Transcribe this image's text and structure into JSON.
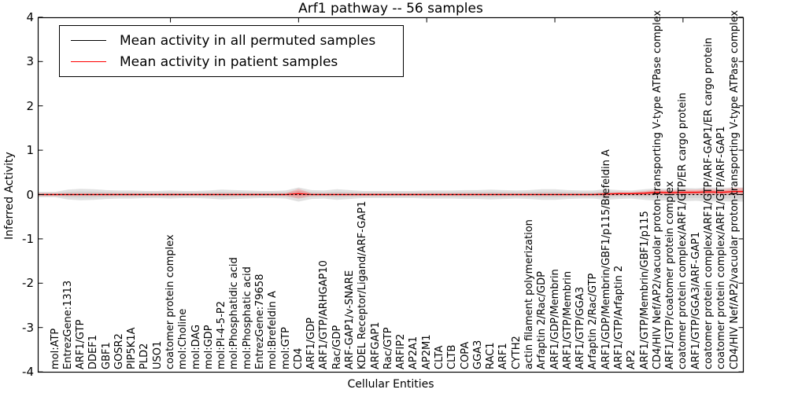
{
  "chart_data": {
    "type": "line",
    "title": "Arf1 pathway -- 56 samples",
    "xlabel": "Cellular Entities",
    "ylabel": "Inferred Activity",
    "ylim": [
      -4,
      4
    ],
    "yticks": [
      "4",
      "3",
      "2",
      "1",
      "0",
      "-1",
      "-2",
      "-3",
      "-4"
    ],
    "top_axis_tick_values": [
      10,
      20,
      30,
      40,
      50
    ],
    "legend_position": "upper left",
    "grid": false,
    "categories": [
      "mol:ATP",
      "EntrezGene:1313",
      "ARF1/GTP",
      "DDEF1",
      "GBF1",
      "GOSR2",
      "PIP5K1A",
      "PLD2",
      "USO1",
      "coatomer protein complex",
      "mol:Choline",
      "mol:DAG",
      "mol:GDP",
      "mol:PI-4-5-P2",
      "mol:Phosphatidic acid",
      "mol:Phosphatic acid",
      "EntrezGene:79658",
      "mol:Brefeldin A",
      "mol:GTP",
      "CD4",
      "ARF1/GDP",
      "ARF1/GTP/ARHGAP10",
      "Rac/GDP",
      "ARF-GAP1/v-SNARE",
      "KDEL Receptor/Ligand/ARF-GAP1",
      "ARFGAP1",
      "Rac/GTP",
      "ARFIP2",
      "AP2A1",
      "AP2M1",
      "CLTA",
      "CLTB",
      "COPA",
      "GGA3",
      "RAC1",
      "ARF1",
      "CYTH2",
      "actin filament polymerization",
      "Arfaptin 2/Rac/GDP",
      "ARF1/GDP/Membrin",
      "ARF1/GTP/Membrin",
      "ARF1/GTP/GGA3",
      "Arfaptin 2/Rac/GTP",
      "ARF1/GDP/Membrin/GBF1/p115/Brefeldin A",
      "ARF1/GTP/Arfaptin 2",
      "AP2",
      "ARF1/GTP/Membrin/GBF1/p115",
      "CD4/HIV Nef/AP2/vacuolar proton-transporting V-type ATPase complex",
      "ARF1/GTP/coatomer protein complex",
      "coatomer protein complex/ARF1/GTP/ER cargo protein",
      "ARF1/GTP/GGA3/ARF-GAP1",
      "coatomer protein complex/ARF1/GTP/ARF-GAP1/ER cargo protein",
      "coatomer protein complex/ARF1/GTP/ARF-GAP1",
      "CD4/HIV Nef/AP2/vacuolar proton-transporting V-type ATPase complex"
    ],
    "series": [
      {
        "name": "Mean activity in all permuted samples",
        "color": "#000000",
        "linestyle": "dashed",
        "values": [
          0,
          0,
          0,
          0,
          0,
          0,
          0,
          0,
          0,
          0,
          0,
          0,
          0,
          0,
          0,
          0,
          0,
          0,
          0,
          0,
          0,
          0,
          0,
          0,
          0,
          0,
          0,
          0,
          0,
          0,
          0,
          0,
          0,
          0,
          0,
          0,
          0,
          0,
          0,
          0,
          0,
          0,
          0,
          0,
          0,
          0,
          0,
          0,
          0,
          0,
          0,
          0,
          0,
          0
        ]
      },
      {
        "name": "Mean activity in patient samples",
        "color": "#ff0000",
        "linestyle": "solid",
        "values": [
          0,
          0,
          0,
          0,
          0,
          0,
          0,
          0,
          0,
          0,
          0,
          0,
          0,
          0,
          0,
          0,
          0,
          0,
          0,
          0.02,
          0,
          0,
          0,
          0,
          0,
          0,
          0,
          0,
          0,
          0,
          0,
          0,
          0,
          0,
          0,
          0,
          0,
          0,
          0,
          0,
          0,
          0,
          0,
          0.01,
          0.02,
          0.02,
          0.03,
          0.05,
          0.04,
          0.05,
          0.05,
          0.06,
          0.05,
          0.07
        ]
      }
    ],
    "bands": [
      {
        "name": "permuted-samples-spread",
        "center_series": 0,
        "color": "#c8c8c8",
        "opacity": 0.55,
        "half_widths": [
          0.06,
          0.11,
          0.13,
          0.12,
          0.1,
          0.09,
          0.09,
          0.08,
          0.08,
          0.09,
          0.08,
          0.08,
          0.09,
          0.11,
          0.1,
          0.09,
          0.08,
          0.08,
          0.09,
          0.16,
          0.1,
          0.09,
          0.12,
          0.1,
          0.08,
          0.08,
          0.08,
          0.08,
          0.08,
          0.09,
          0.09,
          0.09,
          0.1,
          0.1,
          0.11,
          0.1,
          0.09,
          0.1,
          0.12,
          0.12,
          0.1,
          0.09,
          0.09,
          0.12,
          0.1,
          0.09,
          0.12,
          0.14,
          0.13,
          0.15,
          0.14,
          0.16,
          0.15,
          0.16
        ]
      },
      {
        "name": "patient-samples-spread",
        "center_series": 1,
        "color": "#ff6666",
        "opacity": 0.3,
        "half_widths": [
          0.03,
          0.03,
          0.03,
          0.03,
          0.03,
          0.03,
          0.03,
          0.03,
          0.03,
          0.03,
          0.03,
          0.03,
          0.03,
          0.03,
          0.03,
          0.03,
          0.03,
          0.03,
          0.03,
          0.11,
          0.03,
          0.03,
          0.03,
          0.03,
          0.03,
          0.03,
          0.03,
          0.03,
          0.03,
          0.03,
          0.03,
          0.03,
          0.03,
          0.03,
          0.03,
          0.03,
          0.03,
          0.03,
          0.03,
          0.03,
          0.03,
          0.03,
          0.03,
          0.04,
          0.04,
          0.04,
          0.05,
          0.06,
          0.05,
          0.06,
          0.06,
          0.07,
          0.06,
          0.08
        ]
      }
    ]
  }
}
